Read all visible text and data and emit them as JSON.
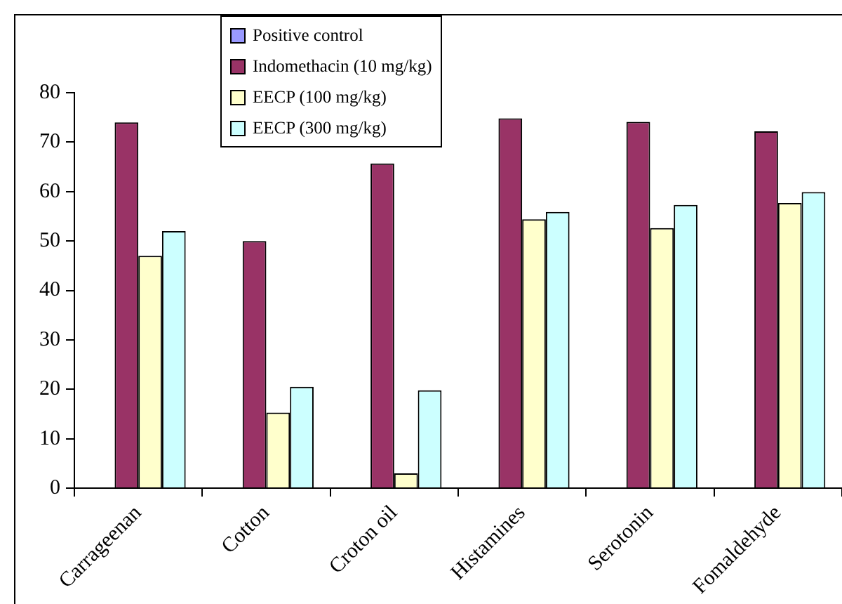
{
  "chart_data": {
    "type": "bar",
    "categories": [
      "Carrageenan",
      "Cotton",
      "Croton oil",
      "Histamines",
      "Serotonin",
      "Fomaldehyde"
    ],
    "series": [
      {
        "name": "Positive control",
        "color": "#9999ff",
        "values": [
          null,
          null,
          null,
          null,
          null,
          null
        ]
      },
      {
        "name": "Indomethacin (10 mg/kg)",
        "color": "#993366",
        "values": [
          74,
          50,
          65.7,
          74.8,
          74.1,
          72.2
        ]
      },
      {
        "name": "EECP (100 mg/kg)",
        "color": "#ffffcc",
        "values": [
          47,
          15.3,
          3,
          54.4,
          52.6,
          57.7
        ]
      },
      {
        "name": "EECP (300 mg/kg)",
        "color": "#ccffff",
        "values": [
          52,
          20.5,
          19.8,
          55.9,
          57.3,
          59.9
        ]
      }
    ],
    "ylim": [
      0,
      80
    ],
    "yticks": [
      0,
      10,
      20,
      30,
      40,
      50,
      60,
      70,
      80
    ],
    "grid": false,
    "legend": "top"
  }
}
